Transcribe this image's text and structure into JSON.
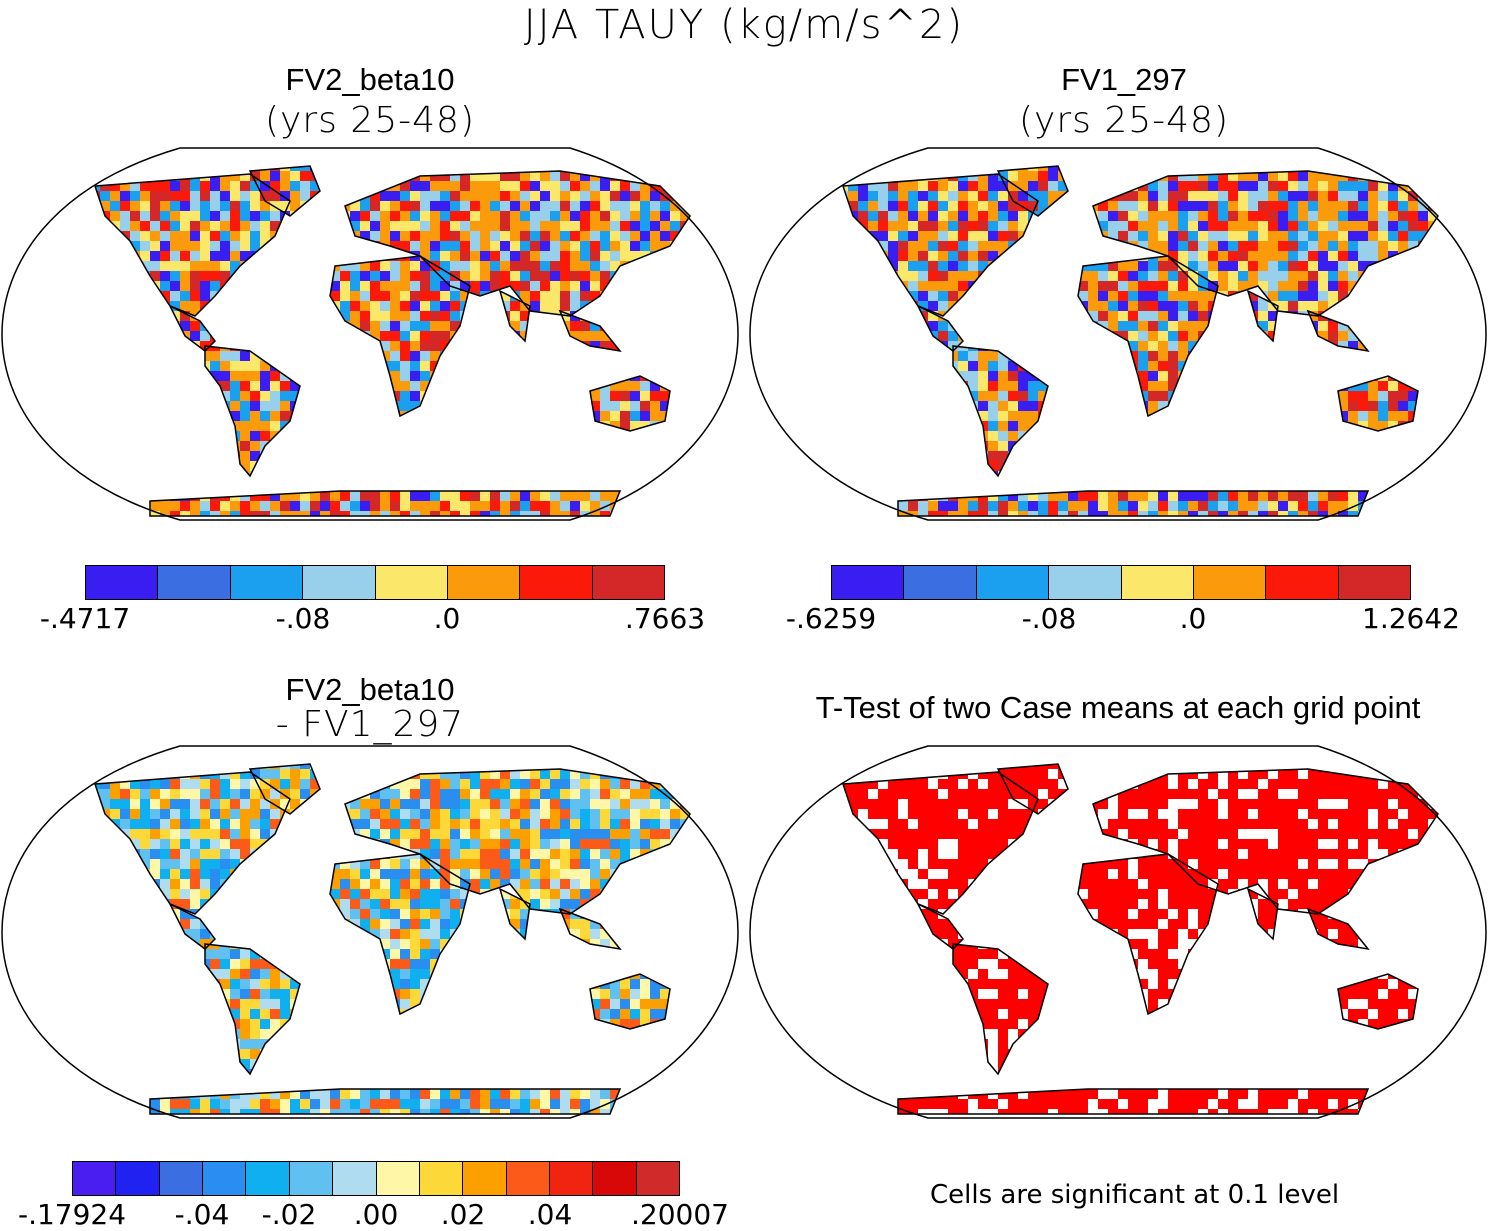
{
  "figure": {
    "title": "JJA TAUY (kg/m/s^2)",
    "note": "Cells are significant at 0.1 level"
  },
  "panels": [
    {
      "title": "FV2_beta10",
      "subtitle": "(yrs 25-48)",
      "colorbar": {
        "colors": [
          "#3a1df0",
          "#3b6ee0",
          "#1aa0ee",
          "#98d0ec",
          "#fbe86a",
          "#fb9a0a",
          "#fb1a0a",
          "#d42828"
        ],
        "tick_labels": [
          "-.4717",
          "-.08",
          ".0",
          ".7663"
        ]
      }
    },
    {
      "title": "FV1_297",
      "subtitle": "(yrs 25-48)",
      "colorbar": {
        "colors": [
          "#3a1df0",
          "#3b6ee0",
          "#1aa0ee",
          "#98d0ec",
          "#fbe86a",
          "#fb9a0a",
          "#fb1a0a",
          "#d42828"
        ],
        "tick_labels": [
          "-.6259",
          "-.08",
          ".0",
          "1.2642"
        ]
      }
    },
    {
      "title": "FV2_beta10",
      "subtitle": "- FV1_297",
      "colorbar": {
        "colors": [
          "#4a1df0",
          "#1f22f0",
          "#3b6ee0",
          "#2a8ef0",
          "#10b0f0",
          "#60c0f0",
          "#b0dcf0",
          "#fff7a8",
          "#fcd838",
          "#fca000",
          "#fc5a18",
          "#f02410",
          "#d80808",
          "#d02a2a"
        ],
        "tick_labels": [
          "-.17924",
          "-.04",
          "-.02",
          ".00",
          ".02",
          ".04",
          ".20007"
        ]
      }
    },
    {
      "title": "T-Test of two Case means at each grid point",
      "subtitle": "",
      "significance_color": "#ff0000"
    }
  ]
}
